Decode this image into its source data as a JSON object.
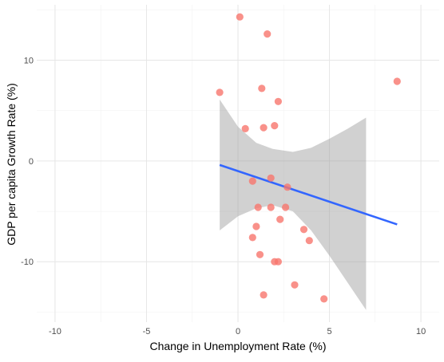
{
  "chart_data": {
    "type": "scatter",
    "title": "",
    "xlabel": "Change in Unemployment Rate (%)",
    "ylabel": "GDP per capita Growth Rate (%)",
    "xlim": [
      -11,
      11
    ],
    "ylim": [
      -16,
      15.5
    ],
    "x_ticks": [
      -10,
      -5,
      0,
      5,
      10
    ],
    "y_ticks": [
      -10,
      0,
      10
    ],
    "grid": true,
    "legend": "none",
    "point_color": "#F8766D",
    "line_color": "#3366FF",
    "band_color": "#999999",
    "points": [
      {
        "x": 0.1,
        "y": 14.3
      },
      {
        "x": 1.6,
        "y": 12.6
      },
      {
        "x": 8.7,
        "y": 7.9
      },
      {
        "x": -1.0,
        "y": 6.8
      },
      {
        "x": 1.3,
        "y": 7.2
      },
      {
        "x": 2.2,
        "y": 5.9
      },
      {
        "x": 0.4,
        "y": 3.2
      },
      {
        "x": 1.4,
        "y": 3.3
      },
      {
        "x": 2.0,
        "y": 3.5
      },
      {
        "x": 1.8,
        "y": -1.7
      },
      {
        "x": 0.8,
        "y": -2.0
      },
      {
        "x": 2.7,
        "y": -2.6
      },
      {
        "x": 1.1,
        "y": -4.6
      },
      {
        "x": 1.8,
        "y": -4.6
      },
      {
        "x": 2.6,
        "y": -4.6
      },
      {
        "x": 2.3,
        "y": -5.8
      },
      {
        "x": 1.0,
        "y": -6.5
      },
      {
        "x": 3.6,
        "y": -6.8
      },
      {
        "x": 0.8,
        "y": -7.6
      },
      {
        "x": 3.9,
        "y": -7.9
      },
      {
        "x": 1.2,
        "y": -9.3
      },
      {
        "x": 2.0,
        "y": -10.0
      },
      {
        "x": 2.2,
        "y": -10.0
      },
      {
        "x": 3.1,
        "y": -12.3
      },
      {
        "x": 1.4,
        "y": -13.3
      },
      {
        "x": 4.7,
        "y": -13.7
      }
    ],
    "trend": {
      "x": [
        -1.0,
        8.7
      ],
      "y": [
        -0.4,
        -6.3
      ]
    },
    "confidence_band": {
      "x": [
        -1.0,
        0.0,
        1.0,
        1.9,
        3.0,
        4.0,
        5.0,
        6.0,
        7.0
      ],
      "upper": [
        6.1,
        3.4,
        1.8,
        1.2,
        0.9,
        1.3,
        2.2,
        3.2,
        4.3
      ],
      "lower": [
        -6.9,
        -5.5,
        -4.7,
        -4.4,
        -5.0,
        -6.9,
        -9.4,
        -12.1,
        -14.8
      ]
    }
  }
}
